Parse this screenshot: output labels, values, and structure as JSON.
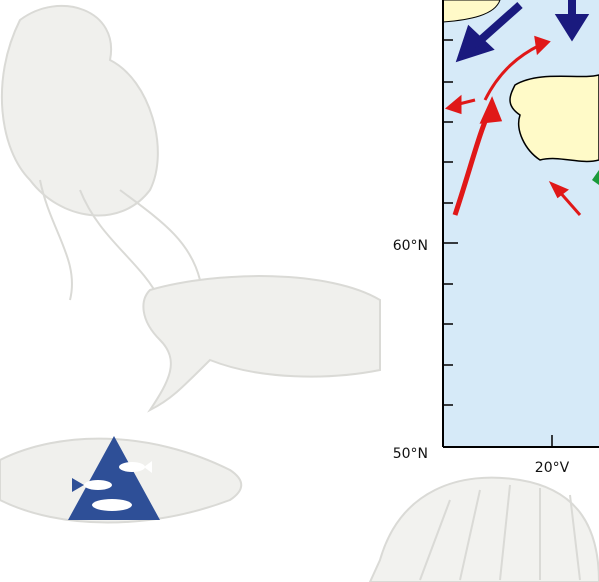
{
  "map": {
    "lat_labels": [
      "60°N",
      "50°N"
    ],
    "lon_labels": [
      "20°V"
    ]
  }
}
